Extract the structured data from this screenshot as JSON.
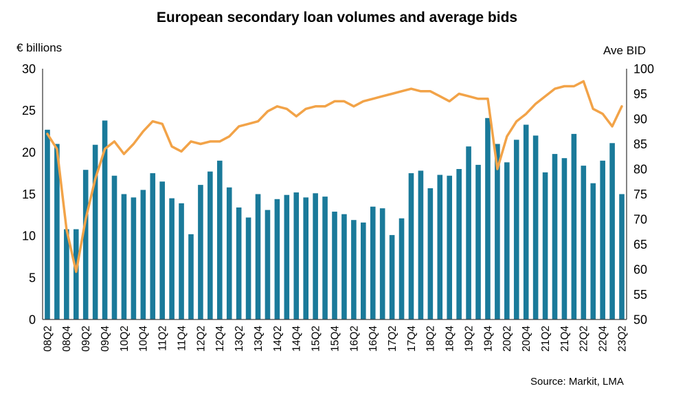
{
  "title": "European secondary loan volumes and average bids",
  "left_axis_label": "€ billions",
  "right_axis_label": "Ave BID",
  "source": "Source: Markit, LMA",
  "colors": {
    "bar": "#1a7a9a",
    "line": "#f2a348",
    "axis": "#3f3f3f",
    "text": "#000000"
  },
  "chart_data": {
    "type": "combo",
    "categories": [
      "08Q2",
      "08Q3",
      "08Q4",
      "09Q1",
      "09Q2",
      "09Q3",
      "09Q4",
      "10Q1",
      "10Q2",
      "10Q3",
      "10Q4",
      "11Q1",
      "11Q2",
      "11Q3",
      "11Q4",
      "12Q1",
      "12Q2",
      "12Q3",
      "12Q4",
      "13Q1",
      "13Q2",
      "13Q3",
      "13Q4",
      "14Q1",
      "14Q2",
      "14Q3",
      "14Q4",
      "15Q1",
      "15Q2",
      "15Q3",
      "15Q4",
      "16Q1",
      "16Q2",
      "16Q3",
      "16Q4",
      "17Q1",
      "17Q2",
      "17Q3",
      "17Q4",
      "18Q1",
      "18Q2",
      "18Q3",
      "18Q4",
      "19Q1",
      "19Q2",
      "19Q3",
      "19Q4",
      "20Q1",
      "20Q2",
      "20Q3",
      "20Q4",
      "21Q1",
      "21Q2",
      "21Q3",
      "21Q4",
      "22Q1",
      "22Q2",
      "22Q3",
      "22Q4",
      "23Q1",
      "23Q2"
    ],
    "x_tick_every": 2,
    "series": [
      {
        "name": "Secondary loan volumes (€ billions)",
        "type": "bar",
        "axis": "left",
        "values": [
          22.7,
          21.0,
          10.8,
          10.8,
          17.9,
          20.9,
          23.8,
          17.2,
          15.0,
          14.6,
          15.5,
          17.5,
          16.5,
          14.5,
          13.9,
          10.2,
          16.1,
          17.7,
          19.0,
          15.8,
          13.4,
          12.2,
          15.0,
          13.1,
          14.4,
          14.9,
          15.2,
          14.6,
          15.1,
          14.7,
          12.9,
          12.6,
          11.9,
          11.6,
          13.5,
          13.3,
          10.1,
          12.1,
          17.5,
          17.8,
          15.7,
          17.3,
          17.2,
          18.0,
          20.7,
          18.5,
          24.1,
          21.0,
          18.8,
          21.5,
          23.3,
          22.0,
          17.6,
          19.8,
          19.3,
          22.2,
          18.4,
          16.3,
          19.0,
          21.1,
          15.0
        ]
      },
      {
        "name": "Ave BID",
        "type": "line",
        "axis": "right",
        "values": [
          87,
          84,
          68,
          59.5,
          70,
          78,
          84,
          85.5,
          83,
          85,
          87.5,
          89.5,
          89,
          84.5,
          83.5,
          85.5,
          85,
          85.5,
          85.5,
          86.5,
          88.5,
          89,
          89.5,
          91.5,
          92.5,
          92,
          90.5,
          92,
          92.5,
          92.5,
          93.5,
          93.5,
          92.5,
          93.5,
          94,
          94.5,
          95,
          95.5,
          96,
          95.5,
          95.5,
          94.5,
          93.5,
          95,
          94.5,
          94,
          94,
          80,
          86.5,
          89.5,
          91,
          93,
          94.5,
          96,
          96.5,
          96.5,
          97.5,
          92,
          91,
          88.5,
          92.5
        ]
      }
    ],
    "left_ylim": [
      0,
      30
    ],
    "left_ticks": [
      0,
      5,
      10,
      15,
      20,
      25,
      30
    ],
    "right_ylim": [
      50,
      100
    ],
    "right_ticks": [
      50,
      55,
      60,
      65,
      70,
      75,
      80,
      85,
      90,
      95,
      100
    ],
    "grid": false,
    "legend": false
  }
}
